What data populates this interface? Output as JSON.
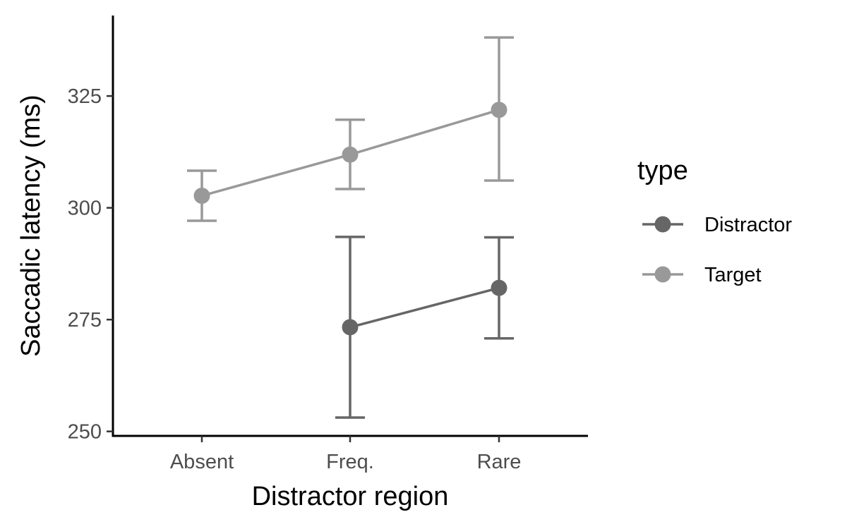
{
  "chart_data": {
    "type": "line",
    "xlabel": "Distractor region",
    "ylabel": "Saccadic latency (ms)",
    "categories": [
      "Absent",
      "Freq.",
      "Rare"
    ],
    "ylim": [
      249,
      343
    ],
    "yticks": [
      250,
      275,
      300,
      325
    ],
    "grid": false,
    "legend": {
      "title": "type",
      "position": "right"
    },
    "series": [
      {
        "name": "Distractor",
        "color": "#666666",
        "points": [
          {
            "x": "Freq.",
            "y": 273.3,
            "ymin": 253.1,
            "ymax": 293.5
          },
          {
            "x": "Rare",
            "y": 282.1,
            "ymin": 270.8,
            "ymax": 293.4
          }
        ]
      },
      {
        "name": "Target",
        "color": "#999999",
        "points": [
          {
            "x": "Absent",
            "y": 302.7,
            "ymin": 297.1,
            "ymax": 308.3
          },
          {
            "x": "Freq.",
            "y": 311.9,
            "ymin": 304.2,
            "ymax": 319.7
          },
          {
            "x": "Rare",
            "y": 321.9,
            "ymin": 306.1,
            "ymax": 338.1
          }
        ]
      }
    ]
  }
}
